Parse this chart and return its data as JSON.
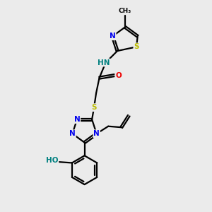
{
  "bg_color": "#ebebeb",
  "atom_colors": {
    "C": "#000000",
    "N": "#0000ee",
    "O": "#ee0000",
    "S": "#bbbb00",
    "H": "#008080"
  },
  "figsize": [
    3.0,
    3.0
  ],
  "dpi": 100,
  "xlim": [
    0,
    10
  ],
  "ylim": [
    0,
    10
  ]
}
